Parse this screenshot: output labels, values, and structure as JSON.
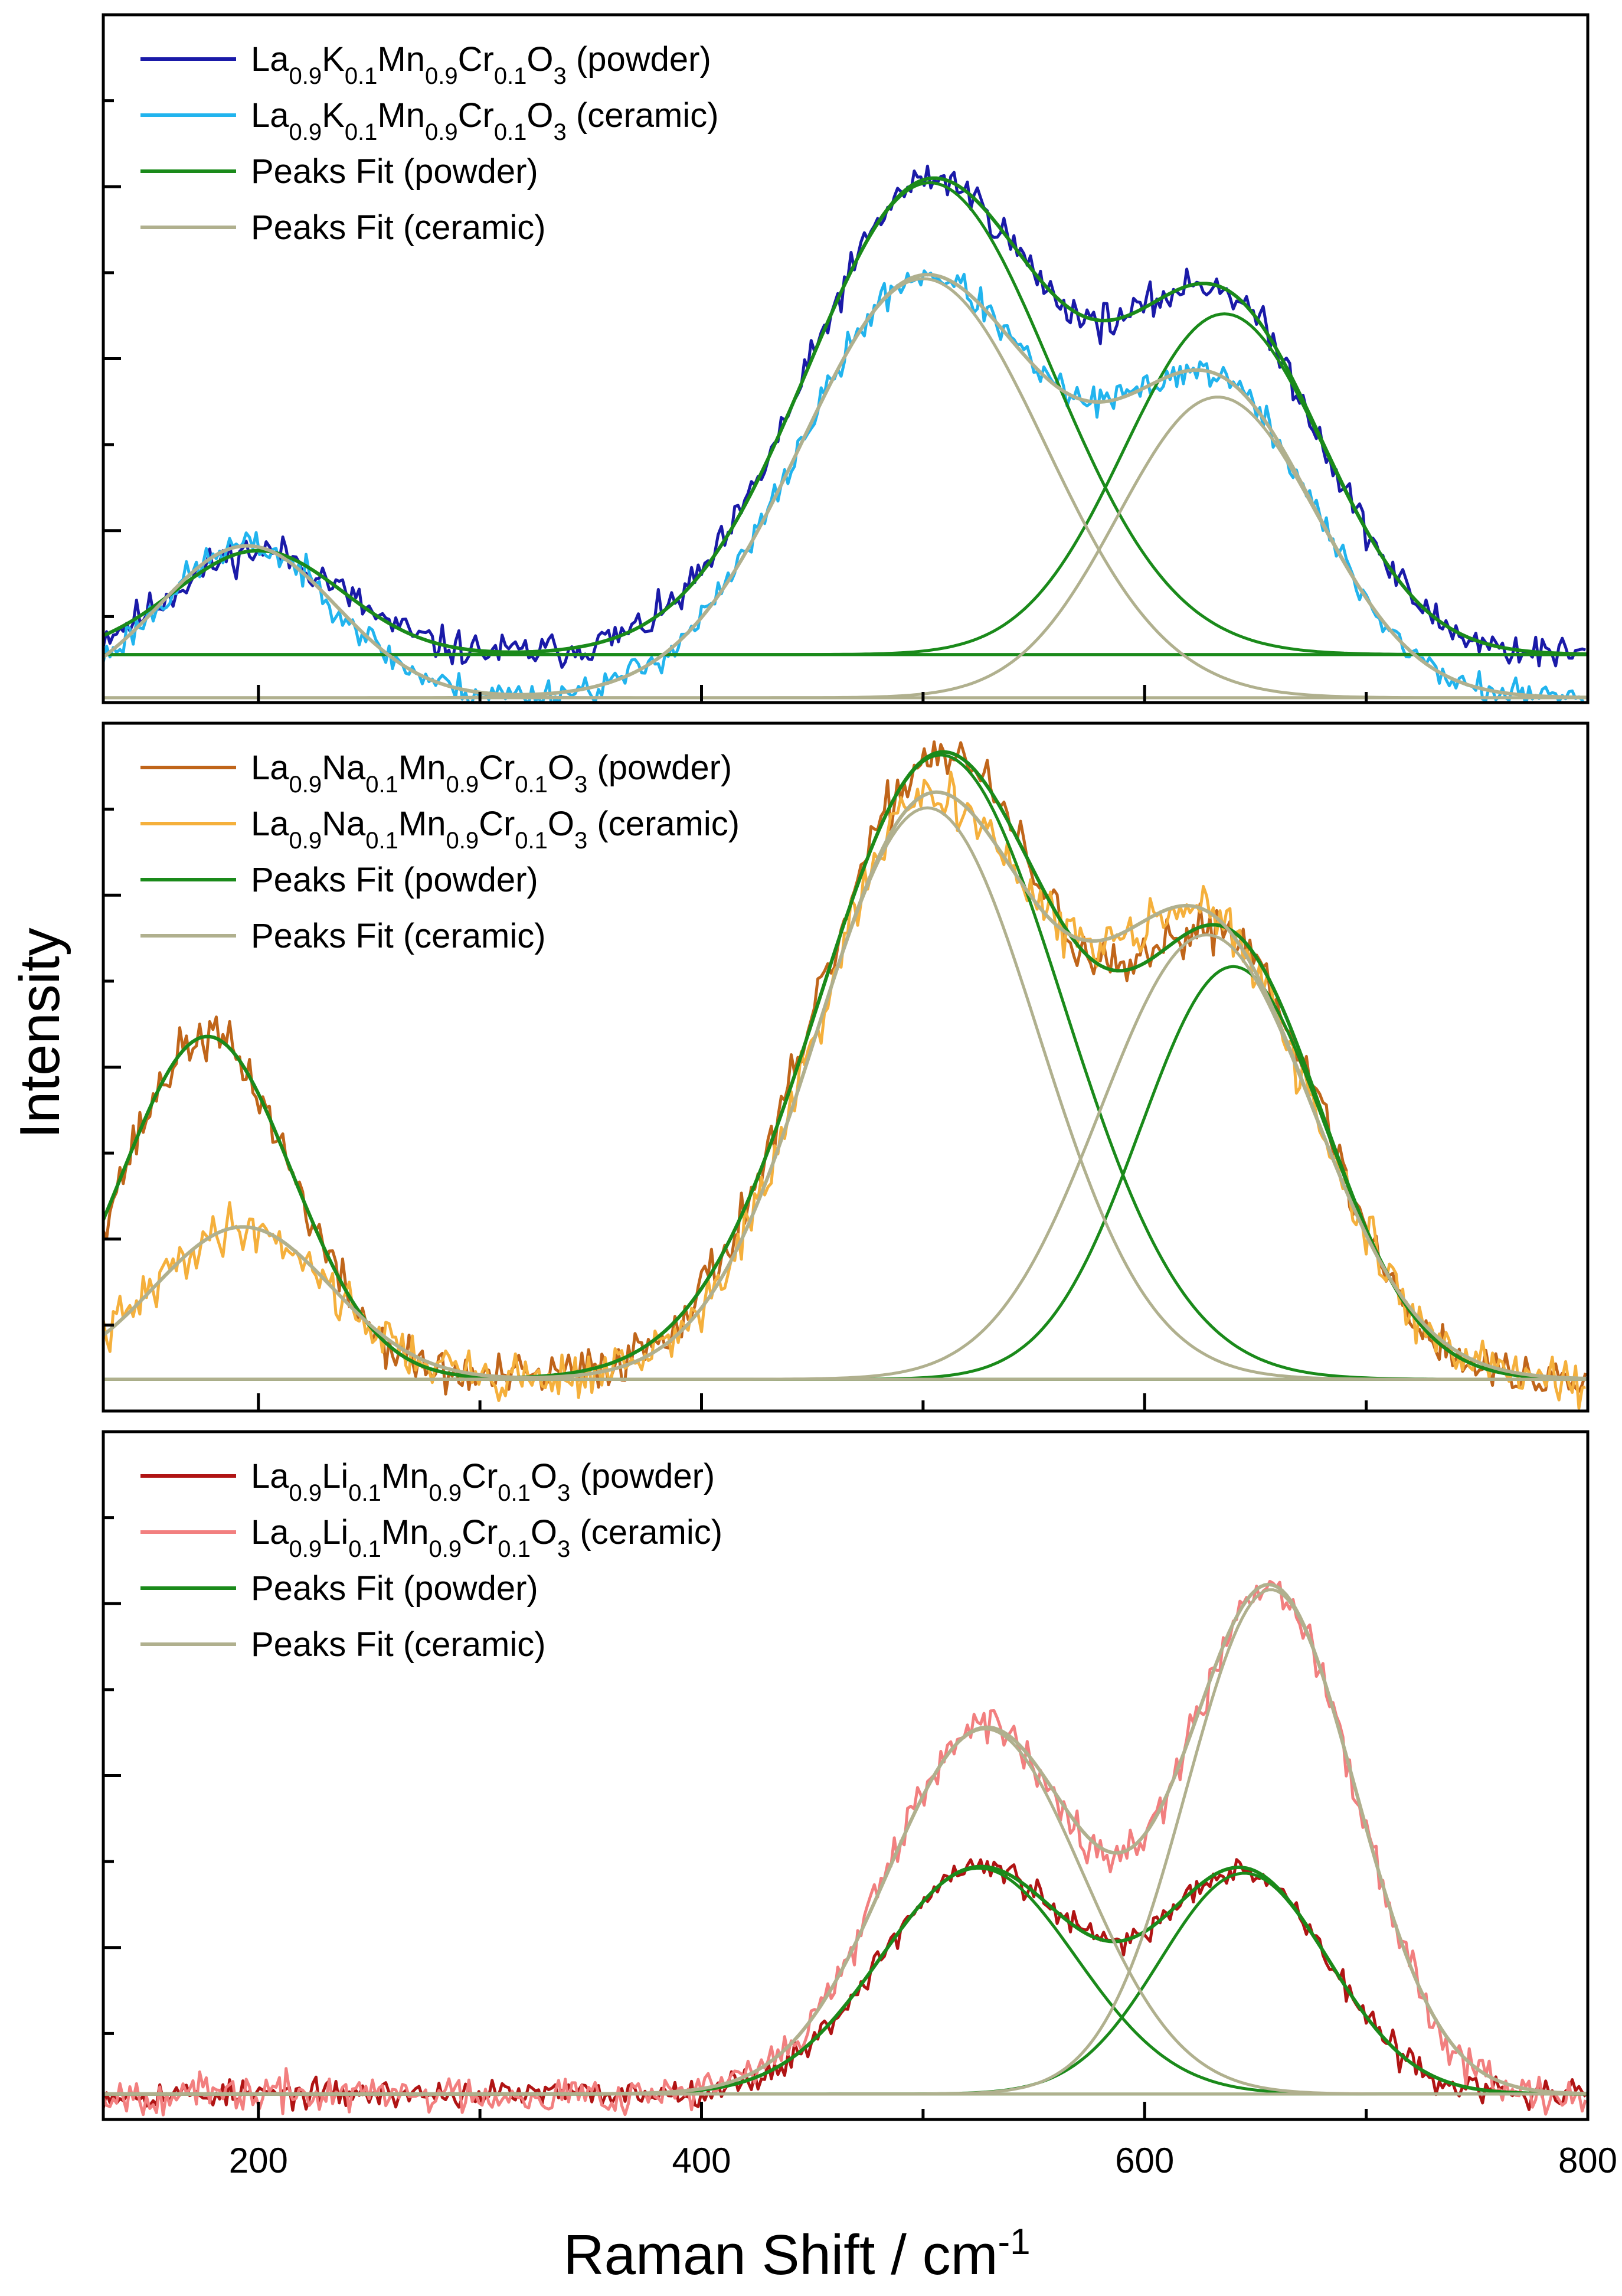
{
  "figure": {
    "xlabel_main": "Raman Shift / cm",
    "xlabel_sup": "-1",
    "ylabel": "Intensity",
    "xlim": [
      130,
      800
    ],
    "xticks": [
      200,
      400,
      600,
      800
    ]
  },
  "chart_data": [
    {
      "type": "line",
      "panel": "top",
      "ylim": [
        -0.3,
        4.0
      ],
      "legend_position": "top-left",
      "legend": [
        {
          "parts": [
            [
              "La",
              ""
            ],
            [
              "0.9",
              "sub"
            ],
            [
              "K",
              ""
            ],
            [
              "0.1",
              "sub"
            ],
            [
              "Mn",
              ""
            ],
            [
              "0.9",
              "sub"
            ],
            [
              "Cr",
              ""
            ],
            [
              "0.1",
              "sub"
            ],
            [
              "O",
              ""
            ],
            [
              "3",
              "sub"
            ],
            [
              " (powder)",
              ""
            ]
          ],
          "color": "#1a1aa8"
        },
        {
          "parts": [
            [
              "La",
              ""
            ],
            [
              "0.9",
              "sub"
            ],
            [
              "K",
              ""
            ],
            [
              "0.1",
              "sub"
            ],
            [
              "Mn",
              ""
            ],
            [
              "0.9",
              "sub"
            ],
            [
              "Cr",
              ""
            ],
            [
              "0.1",
              "sub"
            ],
            [
              "O",
              ""
            ],
            [
              "3",
              "sub"
            ],
            [
              " (ceramic)",
              ""
            ]
          ],
          "color": "#21b4ee"
        },
        {
          "parts": [
            [
              "Peaks Fit (powder)",
              ""
            ]
          ],
          "color": "#1a8a1a"
        },
        {
          "parts": [
            [
              "Peaks Fit (ceramic)",
              ""
            ]
          ],
          "color": "#b0b08e"
        }
      ],
      "series": [
        {
          "name": "powder",
          "color": "#1a1aa8",
          "baseline": 0.0,
          "noise": 0.07,
          "seed": 11,
          "peaks": [
            {
              "center": 200,
              "height": 0.65,
              "width": 38
            },
            {
              "center": 503,
              "height": 2.95,
              "width": 55
            },
            {
              "center": 636,
              "height": 2.13,
              "width": 45
            }
          ]
        },
        {
          "name": "ceramic",
          "color": "#21b4ee",
          "baseline": -0.27,
          "noise": 0.06,
          "seed": 23,
          "peaks": [
            {
              "center": 195,
              "height": 0.95,
              "width": 40
            },
            {
              "center": 500,
              "height": 2.62,
              "width": 55
            },
            {
              "center": 633,
              "height": 1.88,
              "width": 45
            }
          ]
        }
      ],
      "fits": [
        {
          "series": "powder",
          "color": "#1a8a1a"
        },
        {
          "series": "ceramic",
          "color": "#b0b08e"
        }
      ]
    },
    {
      "type": "line",
      "panel": "middle",
      "ylim": [
        -0.15,
        3.1
      ],
      "legend_position": "top-left",
      "legend": [
        {
          "parts": [
            [
              "La",
              ""
            ],
            [
              "0.9",
              "sub"
            ],
            [
              "Na",
              ""
            ],
            [
              "0.1",
              "sub"
            ],
            [
              "Mn",
              ""
            ],
            [
              "0.9",
              "sub"
            ],
            [
              "Cr",
              ""
            ],
            [
              "0.1",
              "sub"
            ],
            [
              "O",
              ""
            ],
            [
              "3",
              "sub"
            ],
            [
              " (powder)",
              ""
            ]
          ],
          "color": "#c0651a"
        },
        {
          "parts": [
            [
              "La",
              ""
            ],
            [
              "0.9",
              "sub"
            ],
            [
              "Na",
              ""
            ],
            [
              "0.1",
              "sub"
            ],
            [
              "Mn",
              ""
            ],
            [
              "0.9",
              "sub"
            ],
            [
              "Cr",
              ""
            ],
            [
              "0.1",
              "sub"
            ],
            [
              "O",
              ""
            ],
            [
              "3",
              "sub"
            ],
            [
              " (ceramic)",
              ""
            ]
          ],
          "color": "#f5b03c"
        },
        {
          "parts": [
            [
              "Peaks Fit (powder)",
              ""
            ]
          ],
          "color": "#1a8a1a"
        },
        {
          "parts": [
            [
              "Peaks Fit (ceramic)",
              ""
            ]
          ],
          "color": "#b0b08e"
        }
      ],
      "series": [
        {
          "name": "powder",
          "color": "#c0651a",
          "baseline": 0.0,
          "noise": 0.07,
          "seed": 37,
          "peaks": [
            {
              "center": 177,
              "height": 1.62,
              "width": 38
            },
            {
              "center": 508,
              "height": 2.95,
              "width": 55
            },
            {
              "center": 640,
              "height": 1.95,
              "width": 42
            }
          ]
        },
        {
          "name": "ceramic",
          "color": "#f5b03c",
          "baseline": 0.0,
          "noise": 0.07,
          "seed": 41,
          "peaks": [
            {
              "center": 193,
              "height": 0.72,
              "width": 40
            },
            {
              "center": 502,
              "height": 2.7,
              "width": 50
            },
            {
              "center": 628,
              "height": 2.1,
              "width": 48
            }
          ]
        }
      ],
      "fits": [
        {
          "series": "powder",
          "color": "#1a8a1a"
        },
        {
          "series": "ceramic",
          "color": "#b0b08e"
        }
      ]
    },
    {
      "type": "line",
      "panel": "bottom",
      "ylim": [
        -0.15,
        3.9
      ],
      "legend_position": "top-left",
      "legend": [
        {
          "parts": [
            [
              "La",
              ""
            ],
            [
              "0.9",
              "sub"
            ],
            [
              "Li",
              ""
            ],
            [
              "0.1",
              "sub"
            ],
            [
              "Mn",
              ""
            ],
            [
              "0.9",
              "sub"
            ],
            [
              "Cr",
              ""
            ],
            [
              "0.1",
              "sub"
            ],
            [
              "O",
              ""
            ],
            [
              "3",
              "sub"
            ],
            [
              " (powder)",
              ""
            ]
          ],
          "color": "#b01414"
        },
        {
          "parts": [
            [
              "La",
              ""
            ],
            [
              "0.9",
              "sub"
            ],
            [
              "Li",
              ""
            ],
            [
              "0.1",
              "sub"
            ],
            [
              "Mn",
              ""
            ],
            [
              "0.9",
              "sub"
            ],
            [
              "Cr",
              ""
            ],
            [
              "0.1",
              "sub"
            ],
            [
              "O",
              ""
            ],
            [
              "3",
              "sub"
            ],
            [
              " (ceramic)",
              ""
            ]
          ],
          "color": "#f27f7f"
        },
        {
          "parts": [
            [
              "Peaks Fit (powder)",
              ""
            ]
          ],
          "color": "#1a8a1a"
        },
        {
          "parts": [
            [
              "Peaks Fit (ceramic)",
              ""
            ]
          ],
          "color": "#b0b08e"
        }
      ],
      "series": [
        {
          "name": "powder",
          "color": "#b01414",
          "baseline": 0.0,
          "noise": 0.05,
          "seed": 53,
          "peaks": [
            {
              "center": 525,
              "height": 1.33,
              "width": 44
            },
            {
              "center": 645,
              "height": 1.3,
              "width": 38
            }
          ]
        },
        {
          "name": "ceramic",
          "color": "#f27f7f",
          "baseline": 0.0,
          "noise": 0.07,
          "seed": 67,
          "peaks": [
            {
              "center": 528,
              "height": 2.15,
              "width": 44
            },
            {
              "center": 657,
              "height": 2.97,
              "width": 38
            }
          ]
        }
      ],
      "fits": [
        {
          "series": "powder",
          "color": "#1a8a1a"
        },
        {
          "series": "ceramic",
          "color": "#b0b08e"
        }
      ]
    }
  ]
}
